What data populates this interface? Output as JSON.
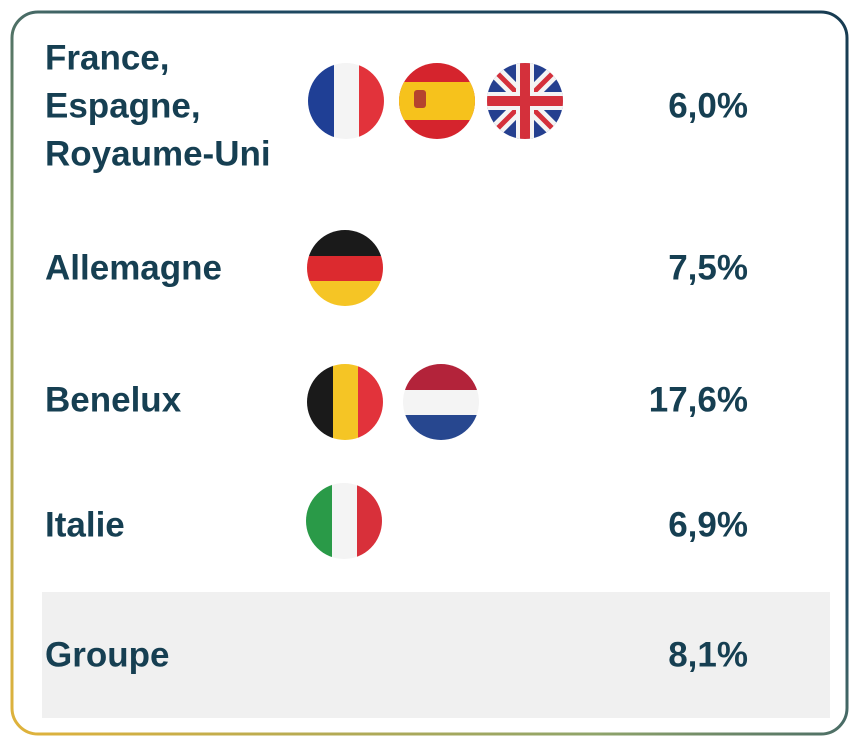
{
  "table": {
    "rows": [
      {
        "label": [
          "France,",
          "Espagne,",
          "Royaume-Uni"
        ],
        "value": "6,0%"
      },
      {
        "label": [
          "Allemagne"
        ],
        "value": "7,5%"
      },
      {
        "label": [
          "Benelux"
        ],
        "value": "17,6%"
      },
      {
        "label": [
          "Italie"
        ],
        "value": "6,9%"
      },
      {
        "label": [
          "Groupe"
        ],
        "value": "8,1%"
      }
    ]
  }
}
